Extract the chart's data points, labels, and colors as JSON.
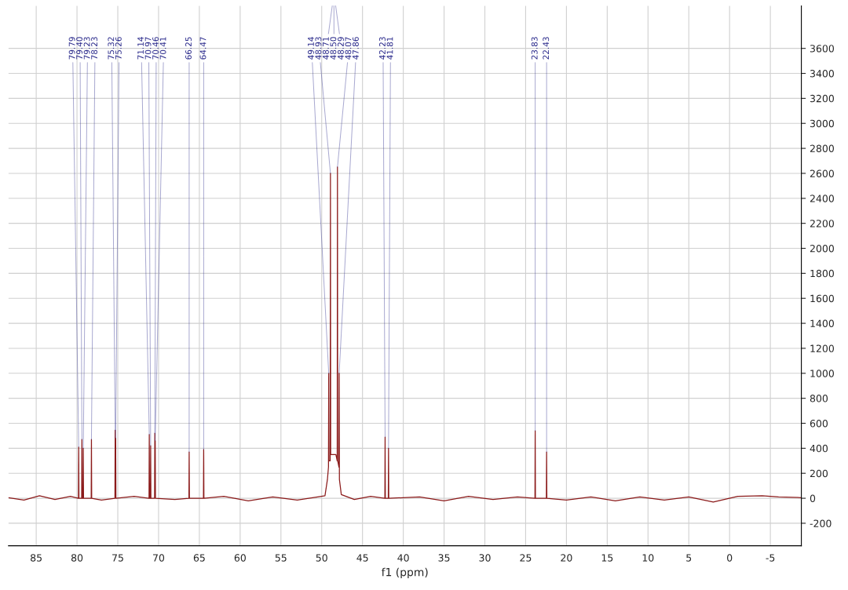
{
  "chart_data": {
    "type": "line",
    "xlabel": "f1 (ppm)",
    "xlim": [
      88.4,
      -8.8
    ],
    "ylim": [
      -380,
      3940
    ],
    "xticks": [
      85,
      80,
      75,
      70,
      65,
      60,
      55,
      50,
      45,
      40,
      35,
      30,
      25,
      20,
      15,
      10,
      5,
      0,
      -5
    ],
    "yticks": [
      -200,
      0,
      200,
      400,
      600,
      800,
      1000,
      1200,
      1400,
      1600,
      1800,
      2000,
      2200,
      2400,
      2600,
      2800,
      3000,
      3200,
      3400,
      3600
    ],
    "grid": true,
    "legend": false,
    "marker": "none",
    "line_style": "solid",
    "series": [
      {
        "color": "#8b1a1a",
        "x": [
          88.4,
          86.5,
          84.6,
          82.7,
          80.8,
          79.82,
          79.79,
          79.76,
          79.43,
          79.4,
          79.37,
          79.26,
          79.23,
          79.2,
          78.26,
          78.23,
          78.2,
          77.0,
          75.35,
          75.32,
          75.29,
          75.26,
          75.23,
          73.0,
          71.17,
          71.14,
          71.11,
          71.0,
          70.97,
          70.94,
          70.49,
          70.46,
          70.435,
          70.41,
          70.38,
          68.0,
          66.28,
          66.25,
          66.22,
          64.5,
          64.47,
          64.44,
          62.0,
          59.0,
          56.0,
          53.0,
          50.5,
          49.6,
          49.3,
          49.17,
          49.14,
          49.11,
          48.96,
          48.93,
          48.9,
          48.74,
          48.71,
          48.68,
          48.53,
          48.5,
          48.47,
          48.32,
          48.29,
          48.26,
          48.1,
          48.07,
          48.04,
          47.89,
          47.86,
          47.83,
          47.6,
          46.0,
          44.0,
          42.26,
          42.23,
          42.2,
          41.84,
          41.81,
          41.78,
          38.0,
          35.0,
          32.0,
          29.0,
          26.0,
          23.86,
          23.83,
          23.8,
          22.46,
          22.43,
          22.4,
          20.0,
          17.0,
          14.0,
          11.0,
          8.0,
          5.0,
          2.0,
          -1.0,
          -4.0,
          -6.0,
          -8.8
        ],
        "values": [
          5,
          -15,
          20,
          -10,
          15,
          0,
          410,
          0,
          0,
          470,
          0,
          0,
          400,
          0,
          0,
          470,
          0,
          -15,
          0,
          545,
          20,
          480,
          0,
          15,
          0,
          510,
          0,
          0,
          420,
          0,
          0,
          520,
          30,
          460,
          0,
          -10,
          0,
          370,
          0,
          0,
          390,
          0,
          15,
          -20,
          10,
          -15,
          10,
          20,
          150,
          250,
          1000,
          300,
          300,
          2600,
          350,
          350,
          null,
          350,
          350,
          null,
          350,
          350,
          null,
          350,
          300,
          2650,
          300,
          250,
          1000,
          150,
          30,
          -10,
          15,
          0,
          490,
          0,
          0,
          400,
          0,
          10,
          -20,
          15,
          -10,
          10,
          0,
          540,
          0,
          0,
          370,
          0,
          -15,
          10,
          -20,
          10,
          -15,
          10,
          -30,
          15,
          20,
          10,
          5
        ]
      }
    ],
    "annotations": [
      {
        "text": "79.79",
        "x": 79.79,
        "y": 410
      },
      {
        "text": "79.40",
        "x": 79.4,
        "y": 470
      },
      {
        "text": "79.23",
        "x": 79.23,
        "y": 400
      },
      {
        "text": "78.23",
        "x": 78.23,
        "y": 470
      },
      {
        "text": "75.32",
        "x": 75.32,
        "y": 545
      },
      {
        "text": "75.26",
        "x": 75.26,
        "y": 480
      },
      {
        "text": "71.14",
        "x": 71.14,
        "y": 510
      },
      {
        "text": "70.97",
        "x": 70.97,
        "y": 420
      },
      {
        "text": "70.46",
        "x": 70.46,
        "y": 520
      },
      {
        "text": "70.41",
        "x": 70.41,
        "y": 460
      },
      {
        "text": "66.25",
        "x": 66.25,
        "y": 370
      },
      {
        "text": "64.47",
        "x": 64.47,
        "y": 390
      },
      {
        "text": "49.14",
        "x": 49.14,
        "y": 1000
      },
      {
        "text": "48.93",
        "x": 48.93,
        "y": 2600
      },
      {
        "text": "48.71",
        "x": 48.71
      },
      {
        "text": "48.50",
        "x": 48.5
      },
      {
        "text": "48.29",
        "x": 48.29
      },
      {
        "text": "48.07",
        "x": 48.07,
        "y": 2650
      },
      {
        "text": "47.86",
        "x": 47.86,
        "y": 1000
      },
      {
        "text": "42.23",
        "x": 42.23,
        "y": 490
      },
      {
        "text": "41.81",
        "x": 41.81,
        "y": 400
      },
      {
        "text": "23.83",
        "x": 23.83,
        "y": 540
      },
      {
        "text": "22.43",
        "x": 22.43,
        "y": 370
      }
    ]
  }
}
